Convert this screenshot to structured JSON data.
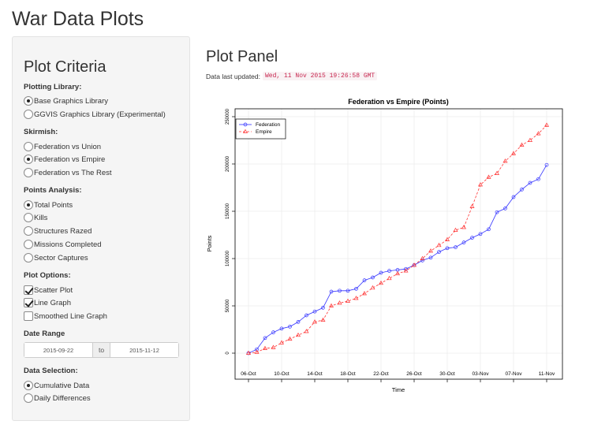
{
  "app": {
    "title": "War Data Plots"
  },
  "sidebar": {
    "title": "Plot Criteria",
    "plotting_library": {
      "label": "Plotting Library:",
      "options": [
        "Base Graphics Library",
        "GGVIS Graphics Library (Experimental)"
      ],
      "selected": 0
    },
    "skirmish": {
      "label": "Skirmish:",
      "options": [
        "Federation vs Union",
        "Federation vs Empire",
        "Federation vs The Rest"
      ],
      "selected": 1
    },
    "points_analysis": {
      "label": "Points Analysis:",
      "options": [
        "Total Points",
        "Kills",
        "Structures Razed",
        "Missions Completed",
        "Sector Captures"
      ],
      "selected": 0
    },
    "plot_options": {
      "label": "Plot Options:",
      "options": [
        "Scatter Plot",
        "Line Graph",
        "Smoothed Line Graph"
      ],
      "checked": [
        true,
        true,
        false
      ]
    },
    "date_range": {
      "label": "Date Range",
      "start": "2015-09-22",
      "separator": "to",
      "end": "2015-11-12"
    },
    "data_selection": {
      "label": "Data Selection:",
      "options": [
        "Cumulative Data",
        "Daily Differences"
      ],
      "selected": 0
    }
  },
  "main": {
    "title": "Plot Panel",
    "updated_label": "Data last updated:",
    "updated_value": "Wed, 11 Nov 2015 19:26:58 GMT"
  },
  "chart_data": {
    "type": "line",
    "title": "Federation vs Empire (Points)",
    "xlabel": "Time",
    "ylabel": "Points",
    "x_tick_labels": [
      "06-Oct",
      "10-Oct",
      "14-Oct",
      "18-Oct",
      "22-Oct",
      "26-Oct",
      "30-Oct",
      "03-Nov",
      "07-Nov",
      "11-Nov"
    ],
    "y_tick_labels": [
      "0",
      "50000",
      "100000",
      "150000",
      "200000",
      "250000"
    ],
    "ylim": [
      0,
      250000
    ],
    "grid": true,
    "legend_position": "top-left",
    "x": [
      "06-Oct",
      "07-Oct",
      "08-Oct",
      "09-Oct",
      "10-Oct",
      "11-Oct",
      "12-Oct",
      "13-Oct",
      "14-Oct",
      "15-Oct",
      "16-Oct",
      "17-Oct",
      "18-Oct",
      "19-Oct",
      "20-Oct",
      "21-Oct",
      "22-Oct",
      "23-Oct",
      "24-Oct",
      "25-Oct",
      "26-Oct",
      "27-Oct",
      "28-Oct",
      "29-Oct",
      "30-Oct",
      "31-Oct",
      "01-Nov",
      "02-Nov",
      "03-Nov",
      "04-Nov",
      "05-Nov",
      "06-Nov",
      "07-Nov",
      "08-Nov",
      "09-Nov",
      "10-Nov",
      "11-Nov"
    ],
    "series": [
      {
        "name": "Federation",
        "color": "#3333ff",
        "marker": "circle",
        "line": "solid",
        "values": [
          0,
          4000,
          16000,
          22000,
          26000,
          28000,
          33000,
          40000,
          44000,
          48000,
          65000,
          66000,
          66000,
          68000,
          77000,
          80000,
          85000,
          87000,
          88000,
          89000,
          93000,
          98000,
          101000,
          107000,
          111000,
          112000,
          117000,
          122000,
          126000,
          131000,
          149000,
          153000,
          165000,
          173000,
          180000,
          184000,
          199000
        ]
      },
      {
        "name": "Empire",
        "color": "#ff3333",
        "marker": "triangle",
        "line": "dashed",
        "values": [
          0,
          1000,
          5000,
          6000,
          11000,
          15000,
          19000,
          23000,
          33000,
          35000,
          50000,
          53000,
          55000,
          58000,
          63000,
          69000,
          74000,
          79000,
          84000,
          87000,
          93000,
          100000,
          108000,
          114000,
          120000,
          130000,
          133000,
          155000,
          178000,
          186000,
          190000,
          203000,
          211000,
          220000,
          225000,
          232000,
          241000
        ]
      }
    ]
  }
}
